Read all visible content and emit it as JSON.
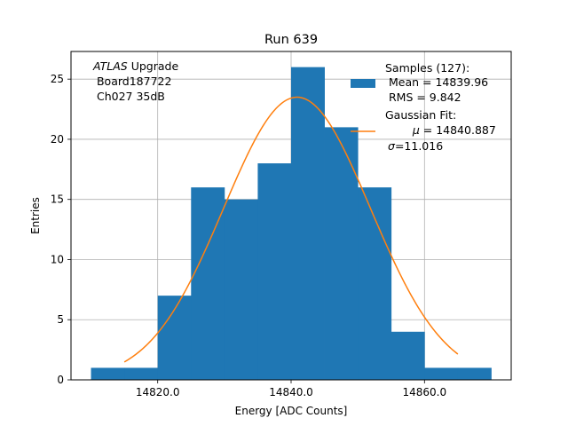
{
  "chart_data": {
    "type": "bar",
    "title": "Run 639",
    "xlabel": "Energy [ADC Counts]",
    "ylabel": "Entries",
    "xlim": [
      14807.0,
      14873.0
    ],
    "ylim": [
      0,
      27.3
    ],
    "xticks": [
      14820.0,
      14840.0,
      14860.0
    ],
    "xtick_labels": [
      "14820.0",
      "14840.0",
      "14860.0"
    ],
    "yticks": [
      0,
      5,
      10,
      15,
      20,
      25
    ],
    "ytick_labels": [
      "0",
      "5",
      "10",
      "15",
      "20",
      "25"
    ],
    "grid": true,
    "bar_color": "#1f77b4",
    "fit_color": "#ff7f0e",
    "histogram": {
      "bin_edges": [
        14810,
        14815,
        14820,
        14825,
        14830,
        14835,
        14840,
        14845,
        14850,
        14855,
        14860,
        14865,
        14870
      ],
      "counts": [
        1,
        1,
        7,
        16,
        15,
        18,
        26,
        21,
        16,
        4,
        1,
        1
      ]
    },
    "gaussian_fit": {
      "mu": 14840.887,
      "sigma": 11.016,
      "amplitude": 23.5,
      "x_range": [
        14815,
        14865
      ]
    },
    "annotation": {
      "atlas": "ATLAS",
      "upgrade": " Upgrade",
      "line2": " Board187722",
      "line3": " Ch027 35dB"
    },
    "legend": {
      "position": "top-right",
      "samples_title": "Samples (127):",
      "samples_mean": " Mean = 14839.96",
      "samples_rms": " RMS = 9.842",
      "fit_title": "Gaussian Fit:",
      "fit_mu_symbol": "μ",
      "fit_mu_value": " = 14840.887",
      "fit_sigma_symbol": "σ",
      "fit_sigma_value": "=11.016"
    }
  }
}
